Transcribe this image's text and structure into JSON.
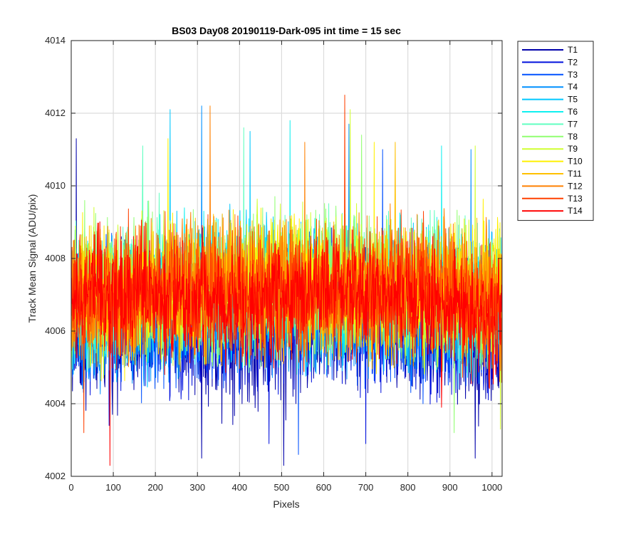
{
  "chart_data": {
    "type": "line",
    "title": "BS03 Day08 20190119-Dark-095 int time = 15 sec",
    "xlabel": "Pixels",
    "ylabel": "Track Mean Signal (ADU/pix)",
    "xlim": [
      0,
      1024
    ],
    "ylim": [
      4002,
      4014
    ],
    "xticks": [
      0,
      100,
      200,
      300,
      400,
      500,
      600,
      700,
      800,
      900,
      1000
    ],
    "yticks": [
      4002,
      4004,
      4006,
      4008,
      4010,
      4012,
      4014
    ],
    "grid": true,
    "legend_position": "outside-top-right",
    "x_range": [
      1,
      1024
    ],
    "series": [
      {
        "name": "T1",
        "color": "#0000aa",
        "mean": 4006.2,
        "noise": 0.95,
        "spikes": [
          [
            12,
            4011.3
          ],
          [
            310,
            4002.5
          ],
          [
            505,
            4002.3
          ],
          [
            960,
            4002.5
          ]
        ]
      },
      {
        "name": "T2",
        "color": "#0010dd",
        "mean": 4006.4,
        "noise": 0.9,
        "spikes": [
          [
            90,
            4003.4
          ],
          [
            470,
            4002.9
          ],
          [
            700,
            4002.9
          ]
        ]
      },
      {
        "name": "T3",
        "color": "#0050ff",
        "mean": 4006.6,
        "noise": 0.9,
        "spikes": [
          [
            540,
            4002.6
          ],
          [
            740,
            4011
          ]
        ]
      },
      {
        "name": "T4",
        "color": "#0090ff",
        "mean": 4006.8,
        "noise": 0.9,
        "spikes": [
          [
            310,
            4012.2
          ],
          [
            660,
            4011.7
          ],
          [
            950,
            4011
          ]
        ]
      },
      {
        "name": "T5",
        "color": "#00c8ff",
        "mean": 4007.0,
        "noise": 0.9,
        "spikes": [
          [
            235,
            4012.1
          ],
          [
            425,
            4011.5
          ]
        ]
      },
      {
        "name": "T6",
        "color": "#10f0f0",
        "mean": 4007.1,
        "noise": 0.9,
        "spikes": [
          [
            520,
            4011.8
          ],
          [
            880,
            4011.1
          ]
        ]
      },
      {
        "name": "T7",
        "color": "#60ffc0",
        "mean": 4007.2,
        "noise": 0.9,
        "spikes": [
          [
            170,
            4011.1
          ],
          [
            410,
            4011.6
          ]
        ]
      },
      {
        "name": "T8",
        "color": "#90ff70",
        "mean": 4007.3,
        "noise": 0.9,
        "spikes": [
          [
            690,
            4011.4
          ],
          [
            910,
            4003.2
          ]
        ]
      },
      {
        "name": "T9",
        "color": "#d0ff30",
        "mean": 4007.3,
        "noise": 0.9,
        "spikes": [
          [
            663,
            4012.1
          ],
          [
            960,
            4011.1
          ],
          [
            1020,
            4003.3
          ]
        ]
      },
      {
        "name": "T10",
        "color": "#fff000",
        "mean": 4007.3,
        "noise": 0.85,
        "spikes": [
          [
            230,
            4011.3
          ],
          [
            720,
            4011.2
          ]
        ]
      },
      {
        "name": "T11",
        "color": "#ffc000",
        "mean": 4007.2,
        "noise": 0.85,
        "spikes": [
          [
            770,
            4011.2
          ]
        ]
      },
      {
        "name": "T12",
        "color": "#ff8000",
        "mean": 4007.2,
        "noise": 0.85,
        "spikes": [
          [
            330,
            4012.2
          ],
          [
            555,
            4011.2
          ]
        ]
      },
      {
        "name": "T13",
        "color": "#ff4000",
        "mean": 4007.1,
        "noise": 0.85,
        "spikes": [
          [
            650,
            4012.5
          ],
          [
            30,
            4003.2
          ]
        ]
      },
      {
        "name": "T14",
        "color": "#ff0000",
        "mean": 4007.0,
        "noise": 0.8,
        "spikes": [
          [
            92,
            4002.3
          ],
          [
            880,
            4003.9
          ]
        ]
      }
    ]
  }
}
